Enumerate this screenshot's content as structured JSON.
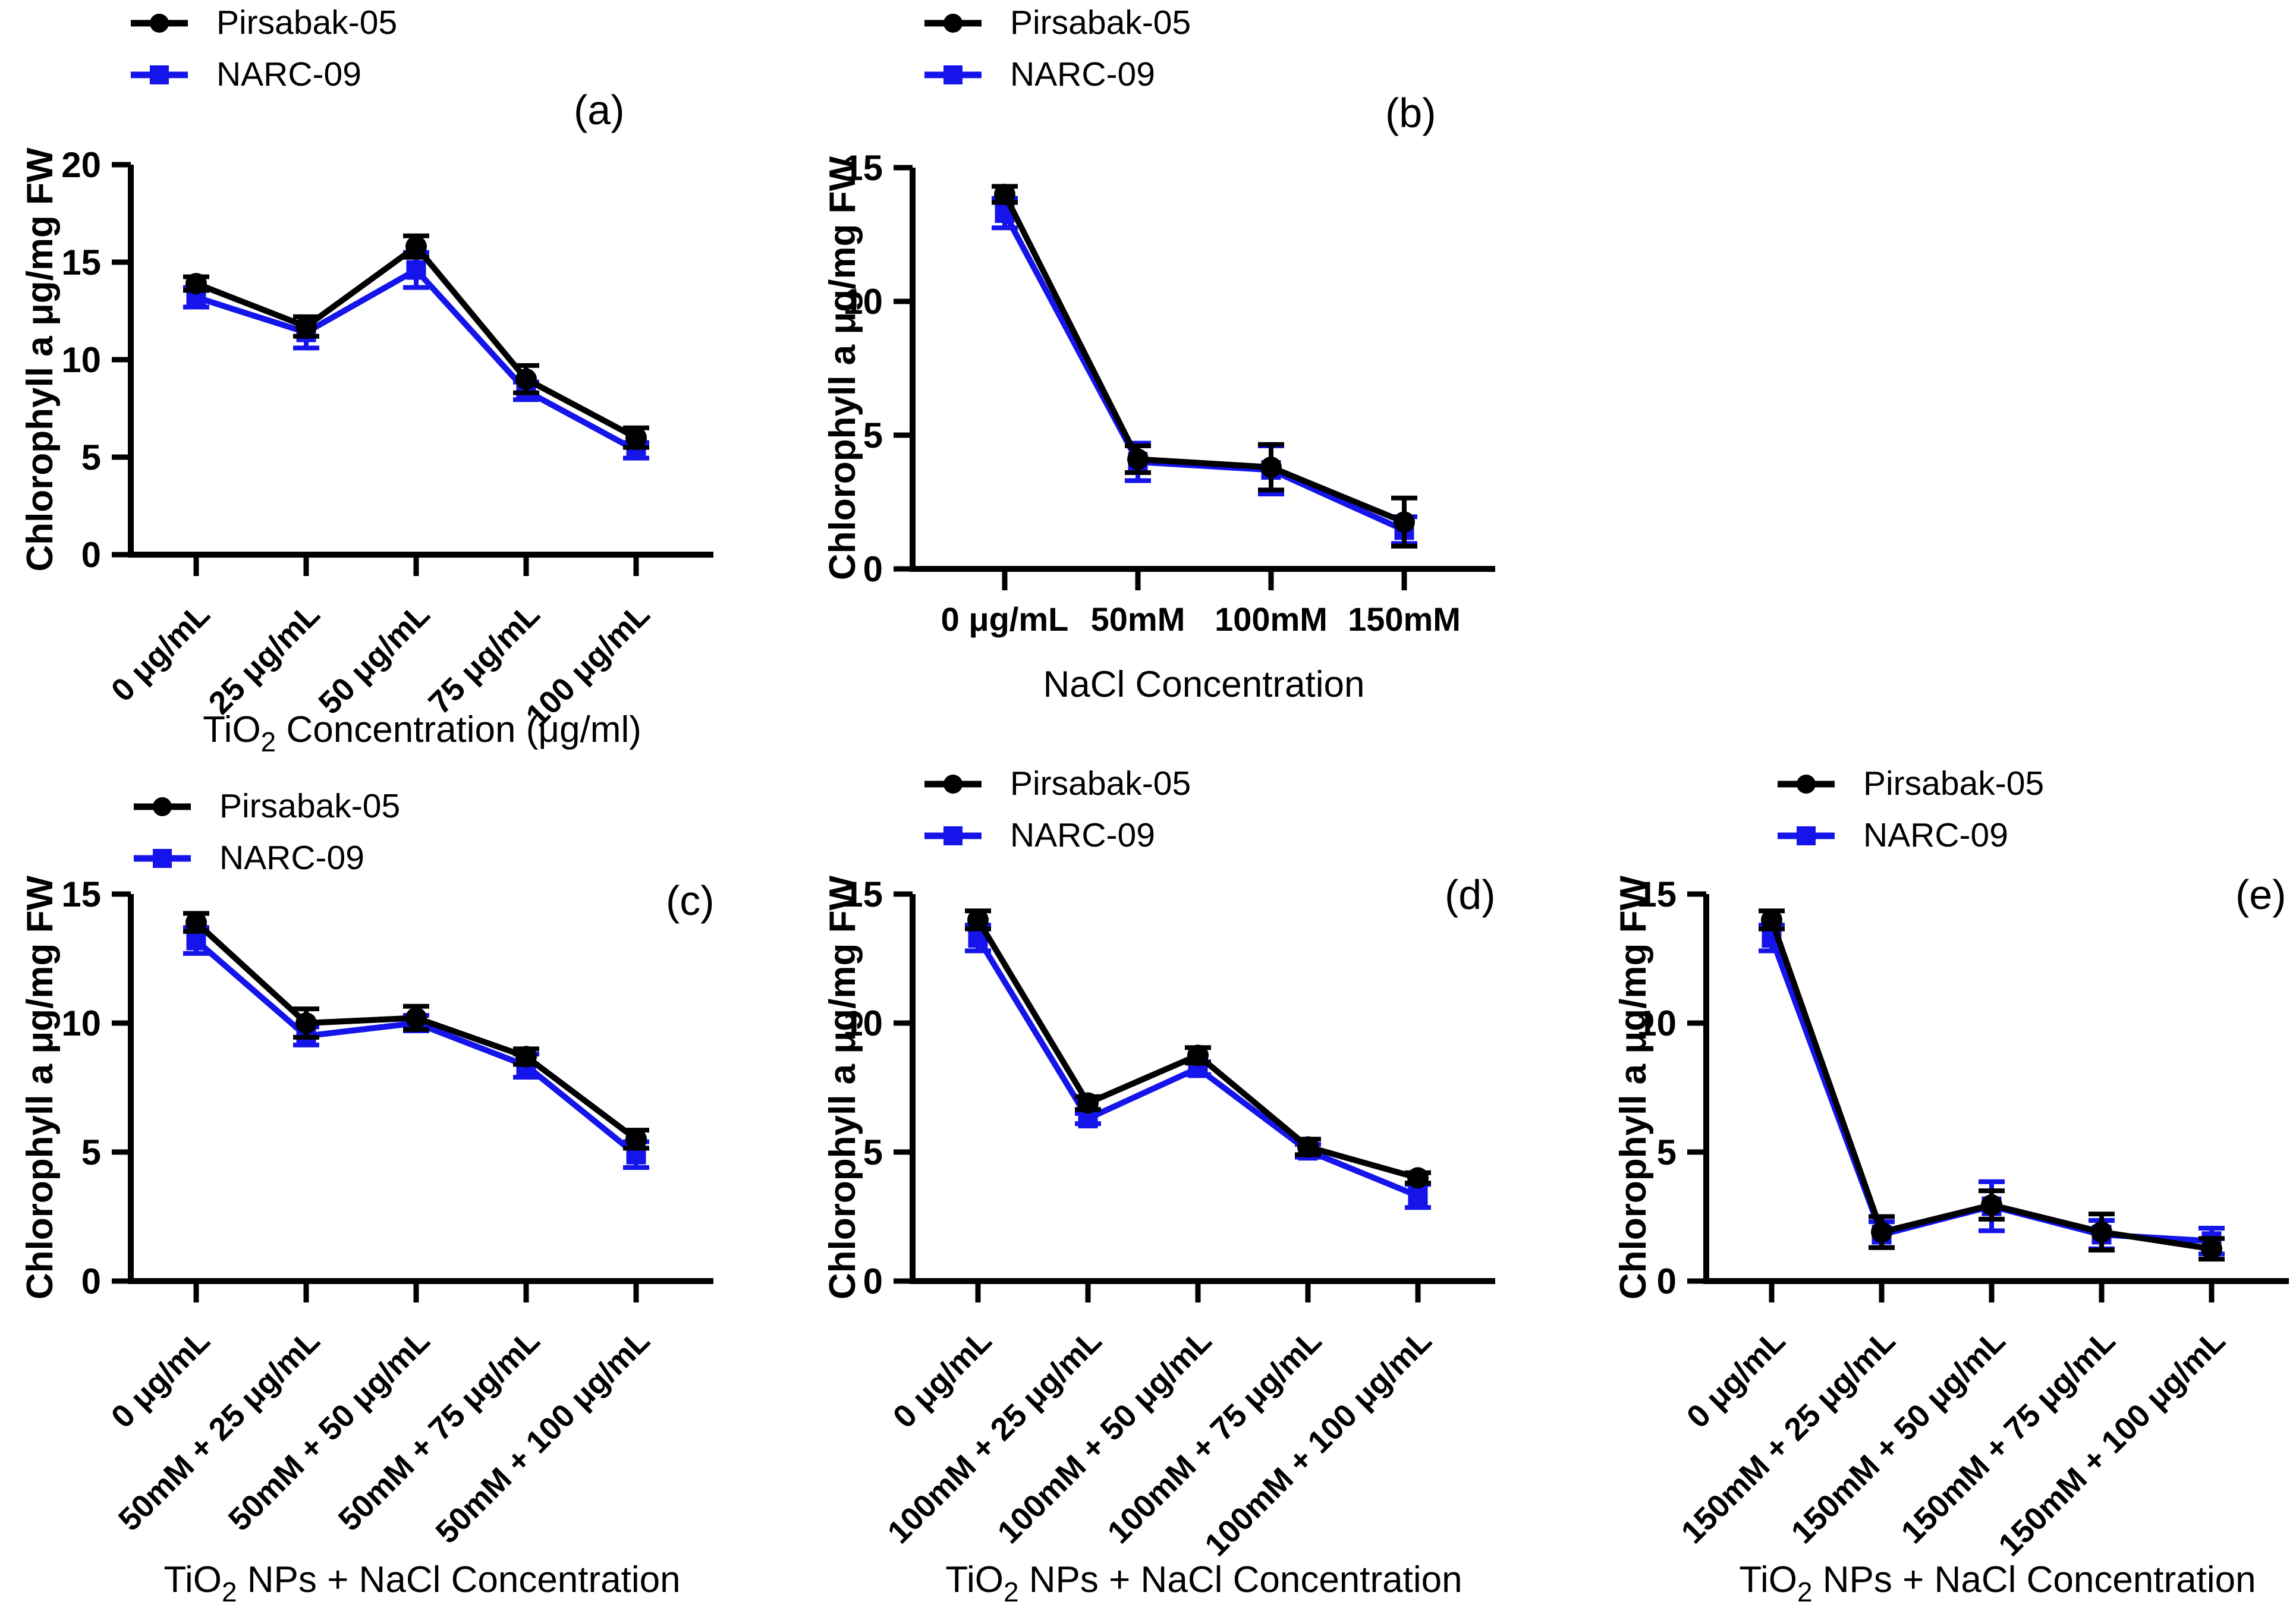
{
  "figure": {
    "background": "#ffffff",
    "axis_color": "#000000",
    "ylabel": "Chlorophyll a μg/mg FW",
    "series_styles": [
      {
        "name": "Pirsabak-05",
        "color": "#000000",
        "marker": "circle"
      },
      {
        "name": "NARC-09",
        "color": "#1414eb",
        "marker": "square"
      }
    ]
  },
  "chart_data": [
    {
      "id": "a",
      "panel_label": "(a)",
      "type": "line",
      "legend_position": "top-left",
      "grid": false,
      "ylabel": "Chlorophyll a μg/mg FW",
      "xlabel": {
        "pre": "TiO",
        "sub": "2",
        "post": "  Concentration (μg/ml)"
      },
      "categories": [
        "0 μg/mL",
        "25 μg/mL",
        "50 μg/mL",
        "75 μg/mL",
        "100 μg/mL"
      ],
      "x_labels_rotated": true,
      "ylim": [
        0,
        20
      ],
      "yticks": [
        0,
        5,
        10,
        15,
        20
      ],
      "series": [
        {
          "name": "Pirsabak-05",
          "values": [
            13.9,
            11.7,
            15.8,
            9.0,
            6.0
          ],
          "errors": [
            0.35,
            0.5,
            0.55,
            0.7,
            0.5
          ]
        },
        {
          "name": "NARC-09",
          "values": [
            13.2,
            11.4,
            14.6,
            8.4,
            5.35
          ],
          "errors": [
            0.5,
            0.8,
            0.9,
            0.45,
            0.4
          ]
        }
      ]
    },
    {
      "id": "b",
      "panel_label": "(b)",
      "type": "line",
      "legend_position": "top-left",
      "grid": false,
      "ylabel": "Chlorophyll a μg/mg FW",
      "xlabel": {
        "pre": "NaCl Concentration",
        "sub": "",
        "post": ""
      },
      "categories": [
        "0 μg/mL",
        "50mM",
        "100mM",
        "150mM"
      ],
      "x_labels_rotated": false,
      "ylim": [
        0,
        15
      ],
      "yticks": [
        0,
        5,
        10,
        15
      ],
      "series": [
        {
          "name": "Pirsabak-05",
          "values": [
            14.0,
            4.1,
            3.8,
            1.75
          ],
          "errors": [
            0.3,
            0.5,
            0.85,
            0.9
          ]
        },
        {
          "name": "NARC-09",
          "values": [
            13.3,
            4.0,
            3.7,
            1.45
          ],
          "errors": [
            0.55,
            0.7,
            0.9,
            0.5
          ]
        }
      ]
    },
    {
      "id": "c",
      "panel_label": "(c)",
      "type": "line",
      "legend_position": "top-left",
      "grid": false,
      "ylabel": "Chlorophyll a μg/mg FW",
      "xlabel": {
        "pre": "TiO",
        "sub": "2",
        "post": "  NPs + NaCl Concentration"
      },
      "categories": [
        "0 μg/mL",
        "50mM + 25 μg/mL",
        "50mM + 50 μg/mL",
        "50mM + 75 μg/mL",
        "50mM + 100 μg/mL"
      ],
      "x_labels_rotated": true,
      "ylim": [
        0,
        15
      ],
      "yticks": [
        0,
        5,
        10,
        15
      ],
      "series": [
        {
          "name": "Pirsabak-05",
          "values": [
            13.9,
            10.0,
            10.2,
            8.7,
            5.5
          ],
          "errors": [
            0.35,
            0.55,
            0.45,
            0.3,
            0.35
          ]
        },
        {
          "name": "NARC-09",
          "values": [
            13.2,
            9.5,
            10.0,
            8.35,
            4.9
          ],
          "errors": [
            0.5,
            0.35,
            0.3,
            0.45,
            0.5
          ]
        }
      ]
    },
    {
      "id": "d",
      "panel_label": "(d)",
      "type": "line",
      "legend_position": "top-left",
      "grid": false,
      "ylabel": "Chlorophyll a μg/mg FW",
      "xlabel": {
        "pre": "TiO",
        "sub": "2",
        "post": "  NPs + NaCl Concentration"
      },
      "categories": [
        "0 μg/mL",
        "100mM + 25 μg/mL",
        "100mM + 50 μg/mL",
        "100mM + 75 μg/mL",
        "100mM + 100 μg/mL"
      ],
      "x_labels_rotated": true,
      "ylim": [
        0,
        15
      ],
      "yticks": [
        0,
        5,
        10,
        15
      ],
      "series": [
        {
          "name": "Pirsabak-05",
          "values": [
            14.0,
            6.9,
            8.75,
            5.2,
            4.0
          ],
          "errors": [
            0.35,
            0.25,
            0.3,
            0.3,
            0.2
          ]
        },
        {
          "name": "NARC-09",
          "values": [
            13.3,
            6.3,
            8.25,
            5.05,
            3.3
          ],
          "errors": [
            0.5,
            0.2,
            0.25,
            0.25,
            0.45
          ]
        }
      ]
    },
    {
      "id": "e",
      "panel_label": "(e)",
      "type": "line",
      "legend_position": "top-left",
      "grid": false,
      "ylabel": "Chlorophyll a μg/mg FW",
      "xlabel": {
        "pre": "TiO",
        "sub": "2",
        "post": "  NPs + NaCl Concentration"
      },
      "categories": [
        "0 μg/mL",
        "150mM + 25 μg/mL",
        "150mM + 50 μg/mL",
        "150mM + 75 μg/mL",
        "150mM + 100 μg/mL"
      ],
      "x_labels_rotated": true,
      "ylim": [
        0,
        15
      ],
      "yticks": [
        0,
        5,
        10,
        15
      ],
      "series": [
        {
          "name": "Pirsabak-05",
          "values": [
            14.0,
            1.9,
            2.95,
            1.9,
            1.25
          ],
          "errors": [
            0.35,
            0.6,
            0.55,
            0.7,
            0.4
          ]
        },
        {
          "name": "NARC-09",
          "values": [
            13.3,
            1.8,
            2.9,
            1.8,
            1.55
          ],
          "errors": [
            0.5,
            0.5,
            0.95,
            0.55,
            0.5
          ]
        }
      ]
    }
  ]
}
